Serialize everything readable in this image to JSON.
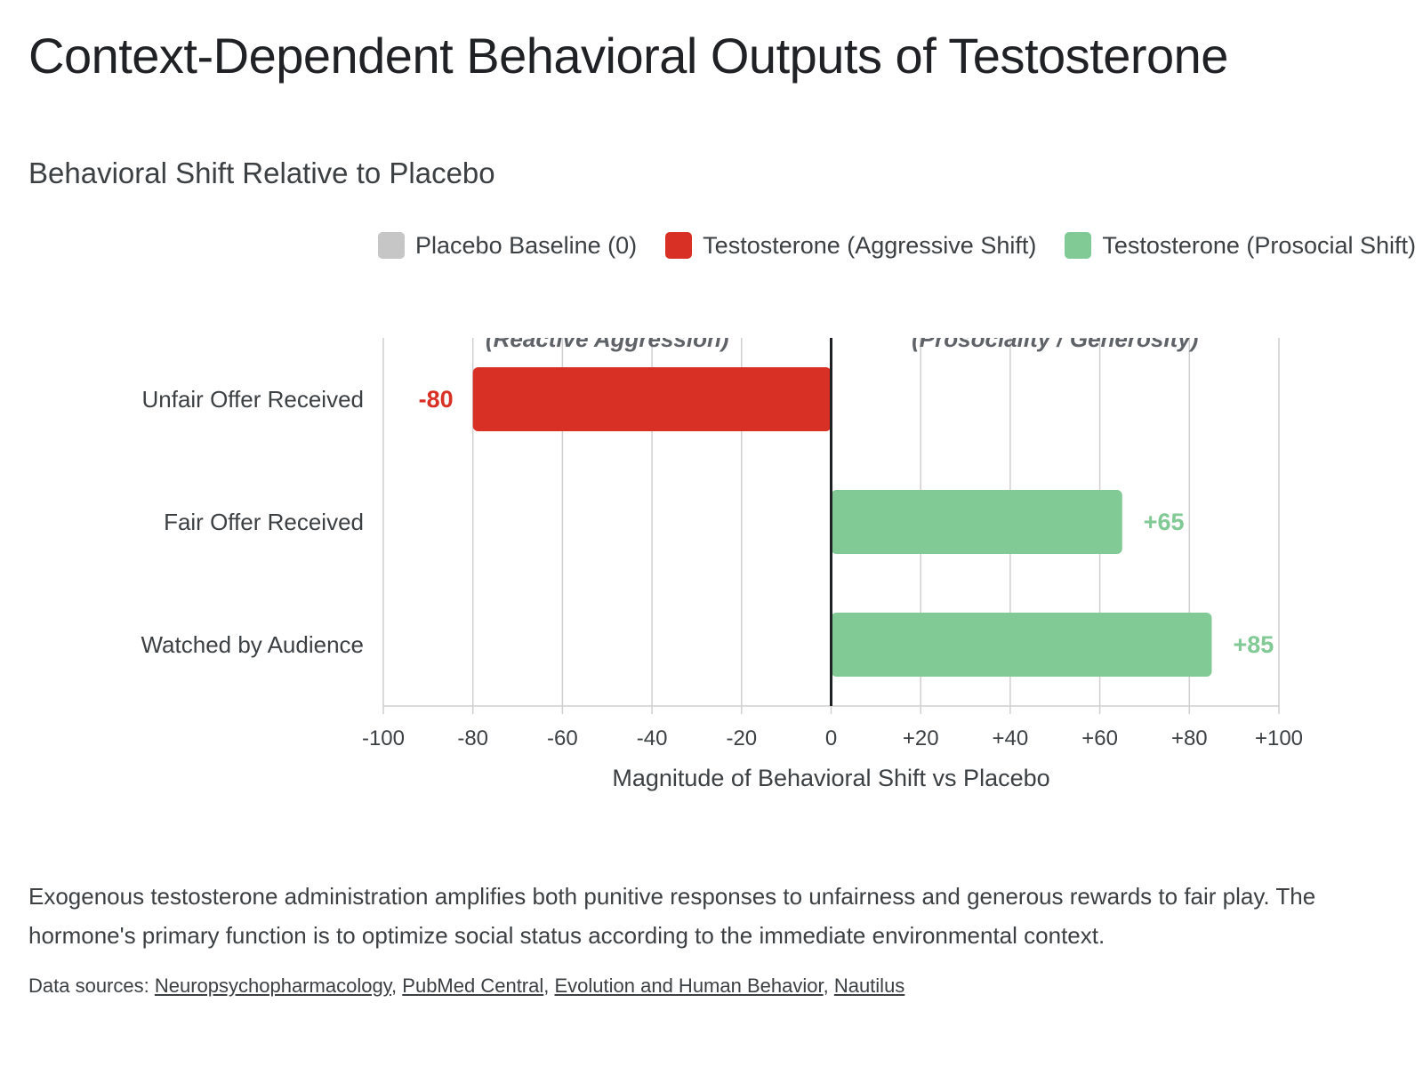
{
  "page": {
    "title": "Context-Dependent Behavioral Outputs of Testosterone",
    "subtitle": "Behavioral Shift Relative to Placebo",
    "description": "Exogenous testosterone administration amplifies both punitive responses to unfairness and generous rewards to fair play. The hormone's primary function is to optimize social status according to the immediate environmental context.",
    "sources_label": "Data sources:",
    "sources": [
      "Neuropsychopharmacology",
      "PubMed Central",
      "Evolution and Human Behavior",
      "Nautilus"
    ]
  },
  "legend": [
    {
      "label": "Placebo Baseline (0)",
      "color": "#c6c6c6"
    },
    {
      "label": "Testosterone (Aggressive Shift)",
      "color": "#d93025"
    },
    {
      "label": "Testosterone (Prosocial Shift)",
      "color": "#81c995"
    }
  ],
  "chart_data": {
    "type": "bar",
    "orientation": "horizontal",
    "categories": [
      "Unfair Offer Received",
      "Fair Offer Received",
      "Watched by Audience"
    ],
    "values": [
      -80,
      65,
      85
    ],
    "value_labels": [
      "-80",
      "+65",
      "+85"
    ],
    "bar_colors": [
      "#d93025",
      "#81c995",
      "#81c995"
    ],
    "xlabel": "Magnitude of Behavioral Shift vs Placebo",
    "xlim": [
      -100,
      100
    ],
    "xticks": [
      -100,
      -80,
      -60,
      -40,
      -20,
      0,
      20,
      40,
      60,
      80,
      100
    ],
    "xtick_labels": [
      "-100",
      "-80",
      "-60",
      "-40",
      "-20",
      "0",
      "+20",
      "+40",
      "+60",
      "+80",
      "+100"
    ],
    "region_labels": {
      "negative": "(Reactive Aggression)",
      "positive": "(Prosociality / Generosity)"
    },
    "grid": true,
    "zero_line_color": "#202124",
    "legend_position": "top-right"
  }
}
